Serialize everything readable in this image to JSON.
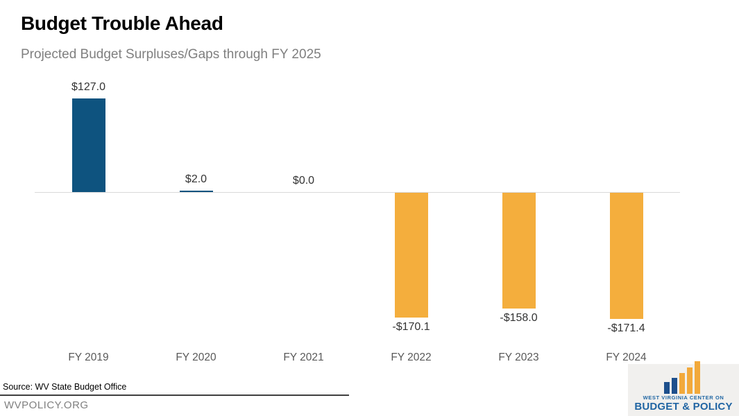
{
  "header": {
    "title": "Budget Trouble Ahead",
    "subtitle": "Projected Budget Surpluses/Gaps through FY 2025"
  },
  "chart_data": {
    "type": "bar",
    "title": "Budget Trouble Ahead",
    "subtitle": "Projected Budget Surpluses/Gaps through FY 2025",
    "categories": [
      "FY 2019",
      "FY 2020",
      "FY 2021",
      "FY 2022",
      "FY 2023",
      "FY 2024"
    ],
    "values": [
      127.0,
      2.0,
      0.0,
      -170.1,
      -158.0,
      -171.4
    ],
    "value_labels": [
      "$127.0",
      "$2.0",
      "$0.0",
      "-$170.1",
      "-$158.0",
      "-$171.4"
    ],
    "xlabel": "",
    "ylabel": "",
    "ylim": [
      -185,
      150
    ],
    "grid": false,
    "legend": false,
    "positive_color": "#0e537f",
    "negative_color": "#f4ae3d",
    "baseline_color": "#d9d9d9"
  },
  "footer": {
    "source": "Source: WV State Budget Office",
    "website": "WVPOLICY.ORG",
    "logo": {
      "line1": "WEST VIRGINIA CENTER ON",
      "line2": "BUDGET & POLICY",
      "bar_blue": "#1d4f8c",
      "bar_gold": "#f2a93b"
    }
  }
}
